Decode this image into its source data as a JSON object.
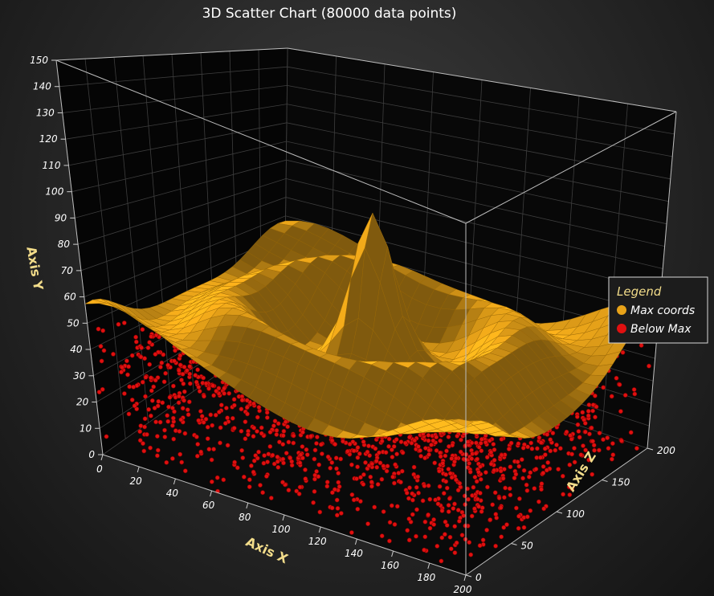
{
  "chart_data": {
    "type": "scatter",
    "title": "3D Scatter Chart (80000 data points)",
    "xlabel": "Axis X",
    "ylabel": "Axis Y",
    "zlabel": "Axis Z",
    "xlim": [
      0,
      200
    ],
    "ylim": [
      0,
      150
    ],
    "zlim": [
      0,
      200
    ],
    "x_ticks": [
      "0",
      "20",
      "40",
      "60",
      "80",
      "100",
      "120",
      "140",
      "160",
      "180",
      "200"
    ],
    "y_ticks": [
      "0",
      "10",
      "20",
      "30",
      "40",
      "50",
      "60",
      "70",
      "80",
      "90",
      "100",
      "110",
      "120",
      "130",
      "140",
      "150"
    ],
    "z_ticks": [
      "0",
      "50",
      "100",
      "150",
      "200"
    ],
    "grid": true,
    "legend": {
      "title": "Legend",
      "placement": "right",
      "entries": [
        {
          "name": "Max coords",
          "color": "#e8a319"
        },
        {
          "name": "Below Max",
          "color": "#e01010"
        }
      ]
    },
    "series": [
      {
        "name": "Max coords",
        "color": "#e8a319",
        "description_points": [
          [
            100,
            100,
            100
          ],
          [
            0,
            42,
            200
          ],
          [
            200,
            68,
            200
          ],
          [
            150,
            8,
            20
          ]
        ]
      },
      {
        "name": "Below Max",
        "color": "#e01010",
        "y_range": [
          0,
          60
        ]
      }
    ]
  }
}
